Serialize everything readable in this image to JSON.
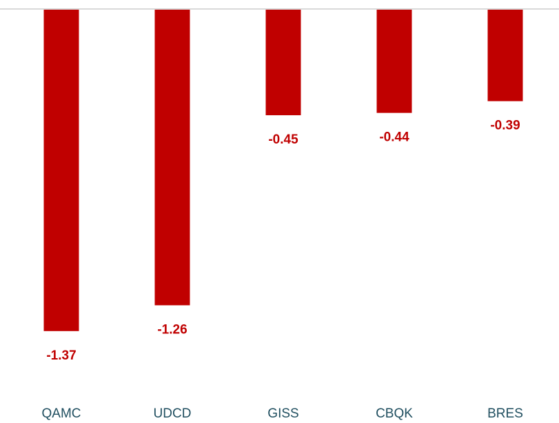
{
  "chart_data": {
    "type": "bar",
    "categories": [
      "QAMC",
      "UDCD",
      "GISS",
      "CBQK",
      "BRES"
    ],
    "values": [
      -1.37,
      -1.26,
      -0.45,
      -0.44,
      -0.39
    ],
    "color": "#c00000",
    "ylim": [
      -1.6,
      0
    ]
  }
}
